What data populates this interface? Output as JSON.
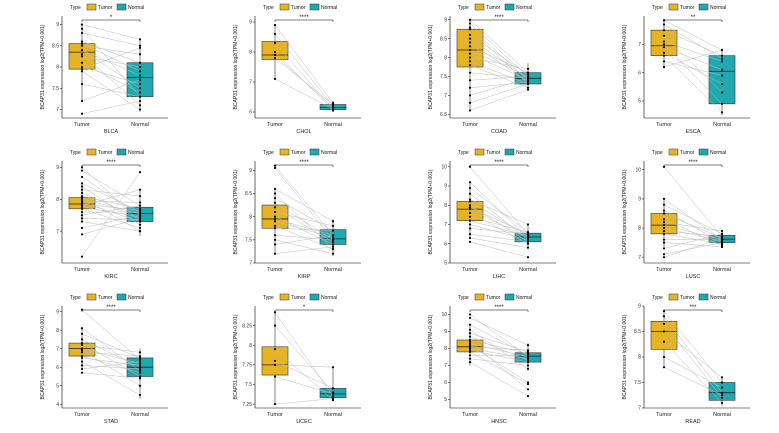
{
  "legend": {
    "title": "Type",
    "entries": [
      "Tumor",
      "Normal"
    ]
  },
  "colors": {
    "tumor": "#E6B422",
    "normal": "#1FA8B0",
    "pair_line": "#bdbdbd",
    "point": "#000000"
  },
  "ylabel": "BCAP31 expression log2(TPM+0.001)",
  "categories": [
    "Tumor",
    "Normal"
  ],
  "chart_data": [
    {
      "type": "box",
      "cancer": "BLCA",
      "sig": "*",
      "ylim": [
        6.8,
        9.2
      ],
      "yticks": [
        7.0,
        7.5,
        8.0,
        8.5,
        9.0
      ],
      "tumor": {
        "q1": 7.95,
        "median": 8.35,
        "q3": 8.55,
        "whisker_low": 7.2,
        "whisker_high": 9.0
      },
      "normal": {
        "q1": 7.3,
        "median": 7.75,
        "q3": 8.1,
        "whisker_low": 6.95,
        "whisker_high": 8.65
      },
      "pairs": [
        [
          9.0,
          8.65
        ],
        [
          8.9,
          7.3
        ],
        [
          8.8,
          8.5
        ],
        [
          8.6,
          8.1
        ],
        [
          8.55,
          7.9
        ],
        [
          8.5,
          8.3
        ],
        [
          8.4,
          7.5
        ],
        [
          8.4,
          7.8
        ],
        [
          8.3,
          7.1
        ],
        [
          8.25,
          8.0
        ],
        [
          8.1,
          7.4
        ],
        [
          8.0,
          7.6
        ],
        [
          7.95,
          8.45
        ],
        [
          7.9,
          7.0
        ],
        [
          7.6,
          7.3
        ],
        [
          7.2,
          7.7
        ],
        [
          6.9,
          7.2
        ]
      ]
    },
    {
      "type": "box",
      "cancer": "CHOL",
      "sig": "****",
      "ylim": [
        5.8,
        9.2
      ],
      "yticks": [
        6,
        7,
        8,
        9
      ],
      "tumor": {
        "q1": 7.75,
        "median": 7.9,
        "q3": 8.35,
        "whisker_low": 7.1,
        "whisker_high": 8.9
      },
      "normal": {
        "q1": 6.08,
        "median": 6.15,
        "q3": 6.25,
        "whisker_low": 6.0,
        "whisker_high": 6.38
      },
      "pairs": [
        [
          8.9,
          6.3
        ],
        [
          8.6,
          6.2
        ],
        [
          8.3,
          6.1
        ],
        [
          8.0,
          6.05
        ],
        [
          7.9,
          6.15
        ],
        [
          7.8,
          6.25
        ],
        [
          7.1,
          6.1
        ]
      ]
    },
    {
      "type": "box",
      "cancer": "COAD",
      "sig": "****",
      "ylim": [
        6.4,
        9.1
      ],
      "yticks": [
        6.5,
        7.0,
        7.5,
        8.0,
        8.5,
        9.0
      ],
      "tumor": {
        "q1": 7.75,
        "median": 8.2,
        "q3": 8.75,
        "whisker_low": 6.6,
        "whisker_high": 9.0
      },
      "normal": {
        "q1": 7.3,
        "median": 7.45,
        "q3": 7.6,
        "whisker_low": 7.15,
        "whisker_high": 7.85
      },
      "pairs": [
        [
          9.0,
          7.6
        ],
        [
          8.9,
          7.5
        ],
        [
          8.8,
          7.4
        ],
        [
          8.75,
          7.3
        ],
        [
          8.6,
          7.55
        ],
        [
          8.5,
          7.45
        ],
        [
          8.4,
          7.35
        ],
        [
          8.3,
          7.6
        ],
        [
          8.2,
          7.5
        ],
        [
          8.1,
          7.4
        ],
        [
          8.0,
          7.7
        ],
        [
          7.9,
          7.3
        ],
        [
          7.8,
          7.2
        ],
        [
          7.6,
          7.45
        ],
        [
          7.4,
          7.5
        ],
        [
          7.2,
          7.35
        ],
        [
          7.0,
          7.45
        ],
        [
          6.8,
          7.3
        ],
        [
          6.6,
          7.15
        ]
      ]
    },
    {
      "type": "box",
      "cancer": "ESCA",
      "sig": "**",
      "ylim": [
        4.4,
        8.0
      ],
      "yticks": [
        5,
        6,
        7
      ],
      "tumor": {
        "q1": 6.6,
        "median": 6.95,
        "q3": 7.5,
        "whisker_low": 6.15,
        "whisker_high": 7.85
      },
      "normal": {
        "q1": 4.9,
        "median": 6.05,
        "q3": 6.6,
        "whisker_low": 4.5,
        "whisker_high": 6.85
      },
      "pairs": [
        [
          7.85,
          6.8
        ],
        [
          7.7,
          6.5
        ],
        [
          7.5,
          6.6
        ],
        [
          7.3,
          5.3
        ],
        [
          7.1,
          6.4
        ],
        [
          7.0,
          4.9
        ],
        [
          6.9,
          6.1
        ],
        [
          6.7,
          5.6
        ],
        [
          6.6,
          4.6
        ],
        [
          6.4,
          5.9
        ],
        [
          6.2,
          6.8
        ]
      ]
    },
    {
      "type": "box",
      "cancer": "KIRC",
      "sig": "****",
      "ylim": [
        6.0,
        9.2
      ],
      "yticks": [
        7,
        8,
        9
      ],
      "tumor": {
        "q1": 7.7,
        "median": 7.85,
        "q3": 8.05,
        "whisker_low": 7.3,
        "whisker_high": 8.5
      },
      "normal": {
        "q1": 7.3,
        "median": 7.55,
        "q3": 7.75,
        "whisker_low": 6.85,
        "whisker_high": 8.3
      },
      "pairs": [
        [
          9.0,
          7.3
        ],
        [
          8.9,
          7.8
        ],
        [
          8.7,
          7.5
        ],
        [
          8.5,
          7.6
        ],
        [
          8.4,
          7.2
        ],
        [
          8.3,
          8.1
        ],
        [
          8.2,
          7.4
        ],
        [
          8.1,
          7.7
        ],
        [
          8.05,
          7.0
        ],
        [
          8.0,
          7.55
        ],
        [
          7.95,
          7.9
        ],
        [
          7.9,
          7.3
        ],
        [
          7.85,
          7.65
        ],
        [
          7.8,
          8.3
        ],
        [
          7.75,
          7.45
        ],
        [
          7.7,
          7.1
        ],
        [
          7.6,
          7.6
        ],
        [
          7.5,
          7.8
        ],
        [
          7.4,
          7.35
        ],
        [
          7.3,
          7.0
        ],
        [
          7.1,
          7.5
        ],
        [
          6.9,
          7.4
        ],
        [
          6.2,
          8.85
        ]
      ]
    },
    {
      "type": "box",
      "cancer": "KIRP",
      "sig": "****",
      "ylim": [
        7.0,
        9.2
      ],
      "yticks": [
        7.0,
        7.5,
        8.0,
        8.5,
        9.0
      ],
      "tumor": {
        "q1": 7.75,
        "median": 7.95,
        "q3": 8.25,
        "whisker_low": 7.2,
        "whisker_high": 8.6
      },
      "normal": {
        "q1": 7.4,
        "median": 7.52,
        "q3": 7.72,
        "whisker_low": 7.15,
        "whisker_high": 7.95
      },
      "pairs": [
        [
          9.1,
          7.6
        ],
        [
          9.05,
          7.5
        ],
        [
          8.6,
          7.9
        ],
        [
          8.5,
          7.3
        ],
        [
          8.4,
          7.7
        ],
        [
          8.3,
          7.5
        ],
        [
          8.2,
          7.45
        ],
        [
          8.1,
          7.8
        ],
        [
          8.0,
          7.4
        ],
        [
          7.95,
          7.6
        ],
        [
          7.9,
          7.55
        ],
        [
          7.8,
          7.3
        ],
        [
          7.75,
          7.7
        ],
        [
          7.6,
          7.5
        ],
        [
          7.5,
          7.2
        ],
        [
          7.4,
          7.6
        ],
        [
          7.2,
          7.35
        ]
      ]
    },
    {
      "type": "box",
      "cancer": "LIHC",
      "sig": "****",
      "ylim": [
        5.0,
        10.3
      ],
      "yticks": [
        5,
        6,
        7,
        8,
        9,
        10
      ],
      "tumor": {
        "q1": 7.2,
        "median": 7.8,
        "q3": 8.2,
        "whisker_low": 6.3,
        "whisker_high": 9.2
      },
      "normal": {
        "q1": 6.1,
        "median": 6.35,
        "q3": 6.55,
        "whisker_low": 5.8,
        "whisker_high": 7.0
      },
      "pairs": [
        [
          10.0,
          6.5
        ],
        [
          9.2,
          6.3
        ],
        [
          8.9,
          6.6
        ],
        [
          8.6,
          6.2
        ],
        [
          8.3,
          7.0
        ],
        [
          8.2,
          6.4
        ],
        [
          8.0,
          6.1
        ],
        [
          7.9,
          6.5
        ],
        [
          7.8,
          6.3
        ],
        [
          7.6,
          6.0
        ],
        [
          7.4,
          6.6
        ],
        [
          7.2,
          6.4
        ],
        [
          7.0,
          6.2
        ],
        [
          6.8,
          6.5
        ],
        [
          6.5,
          6.1
        ],
        [
          6.3,
          5.8
        ],
        [
          6.1,
          5.3
        ]
      ]
    },
    {
      "type": "box",
      "cancer": "LUSC",
      "sig": "****",
      "ylim": [
        6.8,
        10.3
      ],
      "yticks": [
        7,
        8,
        9,
        10
      ],
      "tumor": {
        "q1": 7.8,
        "median": 8.1,
        "q3": 8.5,
        "whisker_low": 7.3,
        "whisker_high": 9.0
      },
      "normal": {
        "q1": 7.5,
        "median": 7.62,
        "q3": 7.75,
        "whisker_low": 7.35,
        "whisker_high": 7.95
      },
      "pairs": [
        [
          10.1,
          7.7
        ],
        [
          9.0,
          7.6
        ],
        [
          8.8,
          7.8
        ],
        [
          8.6,
          7.5
        ],
        [
          8.5,
          7.65
        ],
        [
          8.3,
          7.4
        ],
        [
          8.2,
          7.9
        ],
        [
          8.1,
          7.6
        ],
        [
          8.0,
          7.55
        ],
        [
          7.9,
          7.7
        ],
        [
          7.8,
          7.45
        ],
        [
          7.6,
          7.6
        ],
        [
          7.5,
          7.35
        ],
        [
          7.3,
          7.8
        ],
        [
          7.1,
          7.5
        ],
        [
          7.0,
          7.65
        ]
      ]
    },
    {
      "type": "box",
      "cancer": "STAD",
      "sig": "****",
      "ylim": [
        3.8,
        9.3
      ],
      "yticks": [
        4,
        5,
        6,
        7,
        8,
        9
      ],
      "tumor": {
        "q1": 6.6,
        "median": 7.0,
        "q3": 7.3,
        "whisker_low": 5.9,
        "whisker_high": 8.1
      },
      "normal": {
        "q1": 5.5,
        "median": 6.0,
        "q3": 6.5,
        "whisker_low": 4.3,
        "whisker_high": 7.0
      },
      "pairs": [
        [
          9.1,
          6.4
        ],
        [
          8.1,
          5.8
        ],
        [
          7.8,
          6.5
        ],
        [
          7.5,
          6.0
        ],
        [
          7.3,
          5.5
        ],
        [
          7.2,
          6.8
        ],
        [
          7.0,
          6.2
        ],
        [
          6.9,
          5.0
        ],
        [
          6.8,
          6.6
        ],
        [
          6.6,
          5.7
        ],
        [
          6.5,
          6.1
        ],
        [
          6.3,
          4.5
        ],
        [
          6.1,
          5.9
        ],
        [
          5.9,
          6.3
        ],
        [
          5.7,
          5.4
        ]
      ]
    },
    {
      "type": "box",
      "cancer": "UCEC",
      "sig": "*",
      "ylim": [
        7.2,
        8.5
      ],
      "yticks": [
        7.25,
        7.5,
        7.75,
        8.0,
        8.25
      ],
      "tumor": {
        "q1": 7.62,
        "median": 7.75,
        "q3": 7.98,
        "whisker_low": 7.25,
        "whisker_high": 8.42
      },
      "normal": {
        "q1": 7.33,
        "median": 7.38,
        "q3": 7.45,
        "whisker_low": 7.3,
        "whisker_high": 7.72
      },
      "pairs": [
        [
          8.42,
          7.35
        ],
        [
          8.25,
          7.4
        ],
        [
          7.95,
          7.3
        ],
        [
          7.8,
          7.45
        ],
        [
          7.75,
          7.72
        ],
        [
          7.6,
          7.38
        ],
        [
          7.25,
          7.32
        ]
      ]
    },
    {
      "type": "box",
      "cancer": "HNSC",
      "sig": "****",
      "ylim": [
        4.5,
        10.5
      ],
      "yticks": [
        5,
        6,
        7,
        8,
        9,
        10
      ],
      "tumor": {
        "q1": 7.8,
        "median": 8.1,
        "q3": 8.5,
        "whisker_low": 7.0,
        "whisker_high": 9.4
      },
      "normal": {
        "q1": 7.2,
        "median": 7.55,
        "q3": 7.75,
        "whisker_low": 6.7,
        "whisker_high": 8.3
      },
      "pairs": [
        [
          10.0,
          7.5
        ],
        [
          9.8,
          8.2
        ],
        [
          9.4,
          7.6
        ],
        [
          9.1,
          6.8
        ],
        [
          8.9,
          7.8
        ],
        [
          8.7,
          7.3
        ],
        [
          8.5,
          7.7
        ],
        [
          8.4,
          5.6
        ],
        [
          8.3,
          7.5
        ],
        [
          8.2,
          6.0
        ],
        [
          8.1,
          7.9
        ],
        [
          8.0,
          7.4
        ],
        [
          7.9,
          7.2
        ],
        [
          7.8,
          5.9
        ],
        [
          7.6,
          7.6
        ],
        [
          7.4,
          7.0
        ],
        [
          7.2,
          5.2
        ]
      ]
    },
    {
      "type": "box",
      "cancer": "READ",
      "sig": "***",
      "ylim": [
        7.0,
        9.0
      ],
      "yticks": [
        7.0,
        7.5,
        8.0,
        8.5,
        9.0
      ],
      "tumor": {
        "q1": 8.15,
        "median": 8.5,
        "q3": 8.7,
        "whisker_low": 7.8,
        "whisker_high": 8.9
      },
      "normal": {
        "q1": 7.15,
        "median": 7.3,
        "q3": 7.5,
        "whisker_low": 7.05,
        "whisker_high": 7.6
      },
      "pairs": [
        [
          8.9,
          7.5
        ],
        [
          8.8,
          7.3
        ],
        [
          8.65,
          7.2
        ],
        [
          8.5,
          7.6
        ],
        [
          8.3,
          7.1
        ],
        [
          8.0,
          7.4
        ],
        [
          7.8,
          7.25
        ]
      ]
    }
  ]
}
